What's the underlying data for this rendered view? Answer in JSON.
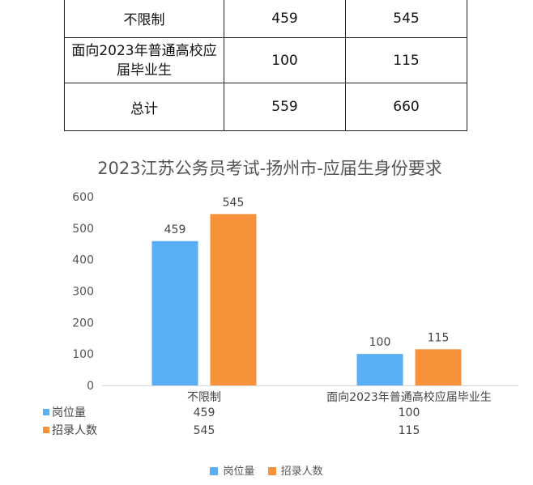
{
  "table": {
    "rows": [
      {
        "label": "不限制",
        "posts": "459",
        "hires": "545"
      },
      {
        "label": "面向2023年普通高校应届毕业生",
        "posts": "100",
        "hires": "115"
      },
      {
        "label": "总计",
        "posts": "559",
        "hires": "660"
      }
    ]
  },
  "chart_data": {
    "type": "bar",
    "title": "2023江苏公务员考试-扬州市-应届生身份要求",
    "categories": [
      "不限制",
      "面向2023年普通高校应届毕业生"
    ],
    "series": [
      {
        "name": "岗位量",
        "values": [
          459,
          100
        ],
        "color": "#5aaef3"
      },
      {
        "name": "招录人数",
        "values": [
          545,
          115
        ],
        "color": "#f7913a"
      }
    ],
    "ylim": [
      0,
      600
    ],
    "yticks": [
      0,
      100,
      200,
      300,
      400,
      500,
      600
    ],
    "grid": false,
    "legend": "bottom",
    "data_table": true
  }
}
